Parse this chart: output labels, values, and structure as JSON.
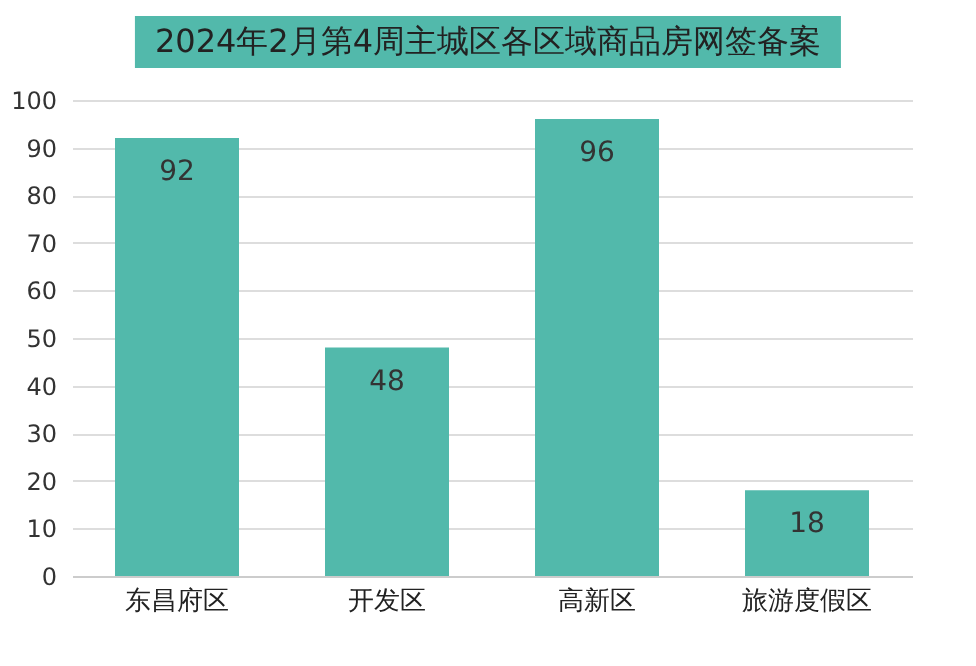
{
  "chart_data": {
    "type": "bar",
    "title": "2024年2月第4周主城区各区域商品房网签备案",
    "categories": [
      "东昌府区",
      "开发区",
      "高新区",
      "旅游度假区"
    ],
    "values": [
      92,
      48,
      96,
      18
    ],
    "color": "#52b9ab",
    "ylim": [
      0,
      100
    ],
    "yticks": [
      0,
      10,
      20,
      30,
      40,
      50,
      60,
      70,
      80,
      90,
      100
    ],
    "grid": "y",
    "data_labels": true
  }
}
